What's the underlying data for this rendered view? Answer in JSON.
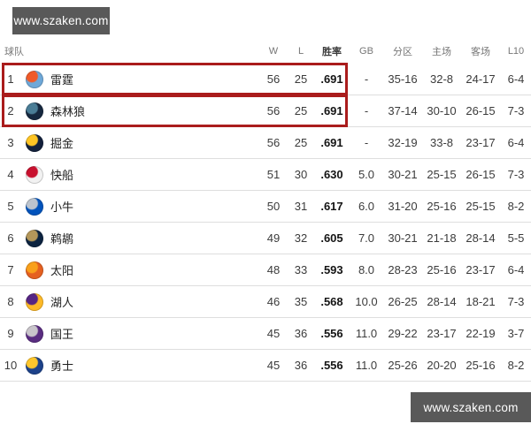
{
  "watermark": {
    "text": "www.szaken.com",
    "bg_color": "#595959",
    "text_color": "#ffffff"
  },
  "colors": {
    "highlight_border": "#aa1c1c",
    "row_divider": "#dedede",
    "header_text": "#767676",
    "cell_text": "#3b3b3b",
    "team_text": "#1f1f1f",
    "pct_text": "#141414"
  },
  "table": {
    "headers": {
      "team": "球队",
      "w": "W",
      "l": "L",
      "pct": "胜率",
      "gb": "GB",
      "div": "分区",
      "home": "主场",
      "away": "客场",
      "l10": "L10"
    },
    "rows": [
      {
        "rank": "1",
        "team": "雷霆",
        "w": "56",
        "l": "25",
        "pct": ".691",
        "gb": "-",
        "div": "35-16",
        "home": "32-8",
        "away": "24-17",
        "l10": "6-4",
        "highlighted": true,
        "logo": {
          "name": "thunder-logo-icon",
          "colors": [
            "#6ea8d8",
            "#f05a28"
          ]
        }
      },
      {
        "rank": "2",
        "team": "森林狼",
        "w": "56",
        "l": "25",
        "pct": ".691",
        "gb": "-",
        "div": "37-14",
        "home": "30-10",
        "away": "26-15",
        "l10": "7-3",
        "highlighted": true,
        "logo": {
          "name": "timberwolves-logo-icon",
          "colors": [
            "#16283f",
            "#4a7d96"
          ]
        }
      },
      {
        "rank": "3",
        "team": "掘金",
        "w": "56",
        "l": "25",
        "pct": ".691",
        "gb": "-",
        "div": "32-19",
        "home": "33-8",
        "away": "23-17",
        "l10": "6-4",
        "highlighted": false,
        "logo": {
          "name": "nuggets-logo-icon",
          "colors": [
            "#13213c",
            "#fec524"
          ]
        }
      },
      {
        "rank": "4",
        "team": "快船",
        "w": "51",
        "l": "30",
        "pct": ".630",
        "gb": "5.0",
        "div": "30-21",
        "home": "25-15",
        "away": "26-15",
        "l10": "7-3",
        "highlighted": false,
        "logo": {
          "name": "clippers-logo-icon",
          "colors": [
            "#f2f2f2",
            "#c8102e"
          ]
        }
      },
      {
        "rank": "5",
        "team": "小牛",
        "w": "50",
        "l": "31",
        "pct": ".617",
        "gb": "6.0",
        "div": "31-20",
        "home": "25-16",
        "away": "25-15",
        "l10": "8-2",
        "highlighted": false,
        "logo": {
          "name": "mavericks-logo-icon",
          "colors": [
            "#0053bc",
            "#bcc4ce"
          ]
        }
      },
      {
        "rank": "6",
        "team": "鹈鹕",
        "w": "49",
        "l": "32",
        "pct": ".605",
        "gb": "7.0",
        "div": "30-21",
        "home": "21-18",
        "away": "28-14",
        "l10": "5-5",
        "highlighted": false,
        "logo": {
          "name": "pelicans-logo-icon",
          "colors": [
            "#0c2340",
            "#b4975a"
          ]
        }
      },
      {
        "rank": "7",
        "team": "太阳",
        "w": "48",
        "l": "33",
        "pct": ".593",
        "gb": "8.0",
        "div": "28-23",
        "home": "25-16",
        "away": "23-17",
        "l10": "6-4",
        "highlighted": false,
        "logo": {
          "name": "suns-logo-icon",
          "colors": [
            "#e56020",
            "#f9a01b"
          ]
        }
      },
      {
        "rank": "8",
        "team": "湖人",
        "w": "46",
        "l": "35",
        "pct": ".568",
        "gb": "10.0",
        "div": "26-25",
        "home": "28-14",
        "away": "18-21",
        "l10": "7-3",
        "highlighted": false,
        "logo": {
          "name": "lakers-logo-icon",
          "colors": [
            "#fdb927",
            "#552583"
          ]
        }
      },
      {
        "rank": "9",
        "team": "国王",
        "w": "45",
        "l": "36",
        "pct": ".556",
        "gb": "11.0",
        "div": "29-22",
        "home": "23-17",
        "away": "22-19",
        "l10": "3-7",
        "highlighted": false,
        "logo": {
          "name": "kings-logo-icon",
          "colors": [
            "#5a2d81",
            "#c9c5cb"
          ]
        }
      },
      {
        "rank": "10",
        "team": "勇士",
        "w": "45",
        "l": "36",
        "pct": ".556",
        "gb": "11.0",
        "div": "25-26",
        "home": "20-20",
        "away": "25-16",
        "l10": "8-2",
        "highlighted": false,
        "logo": {
          "name": "warriors-logo-icon",
          "colors": [
            "#1d428a",
            "#ffc72c"
          ]
        }
      }
    ]
  }
}
